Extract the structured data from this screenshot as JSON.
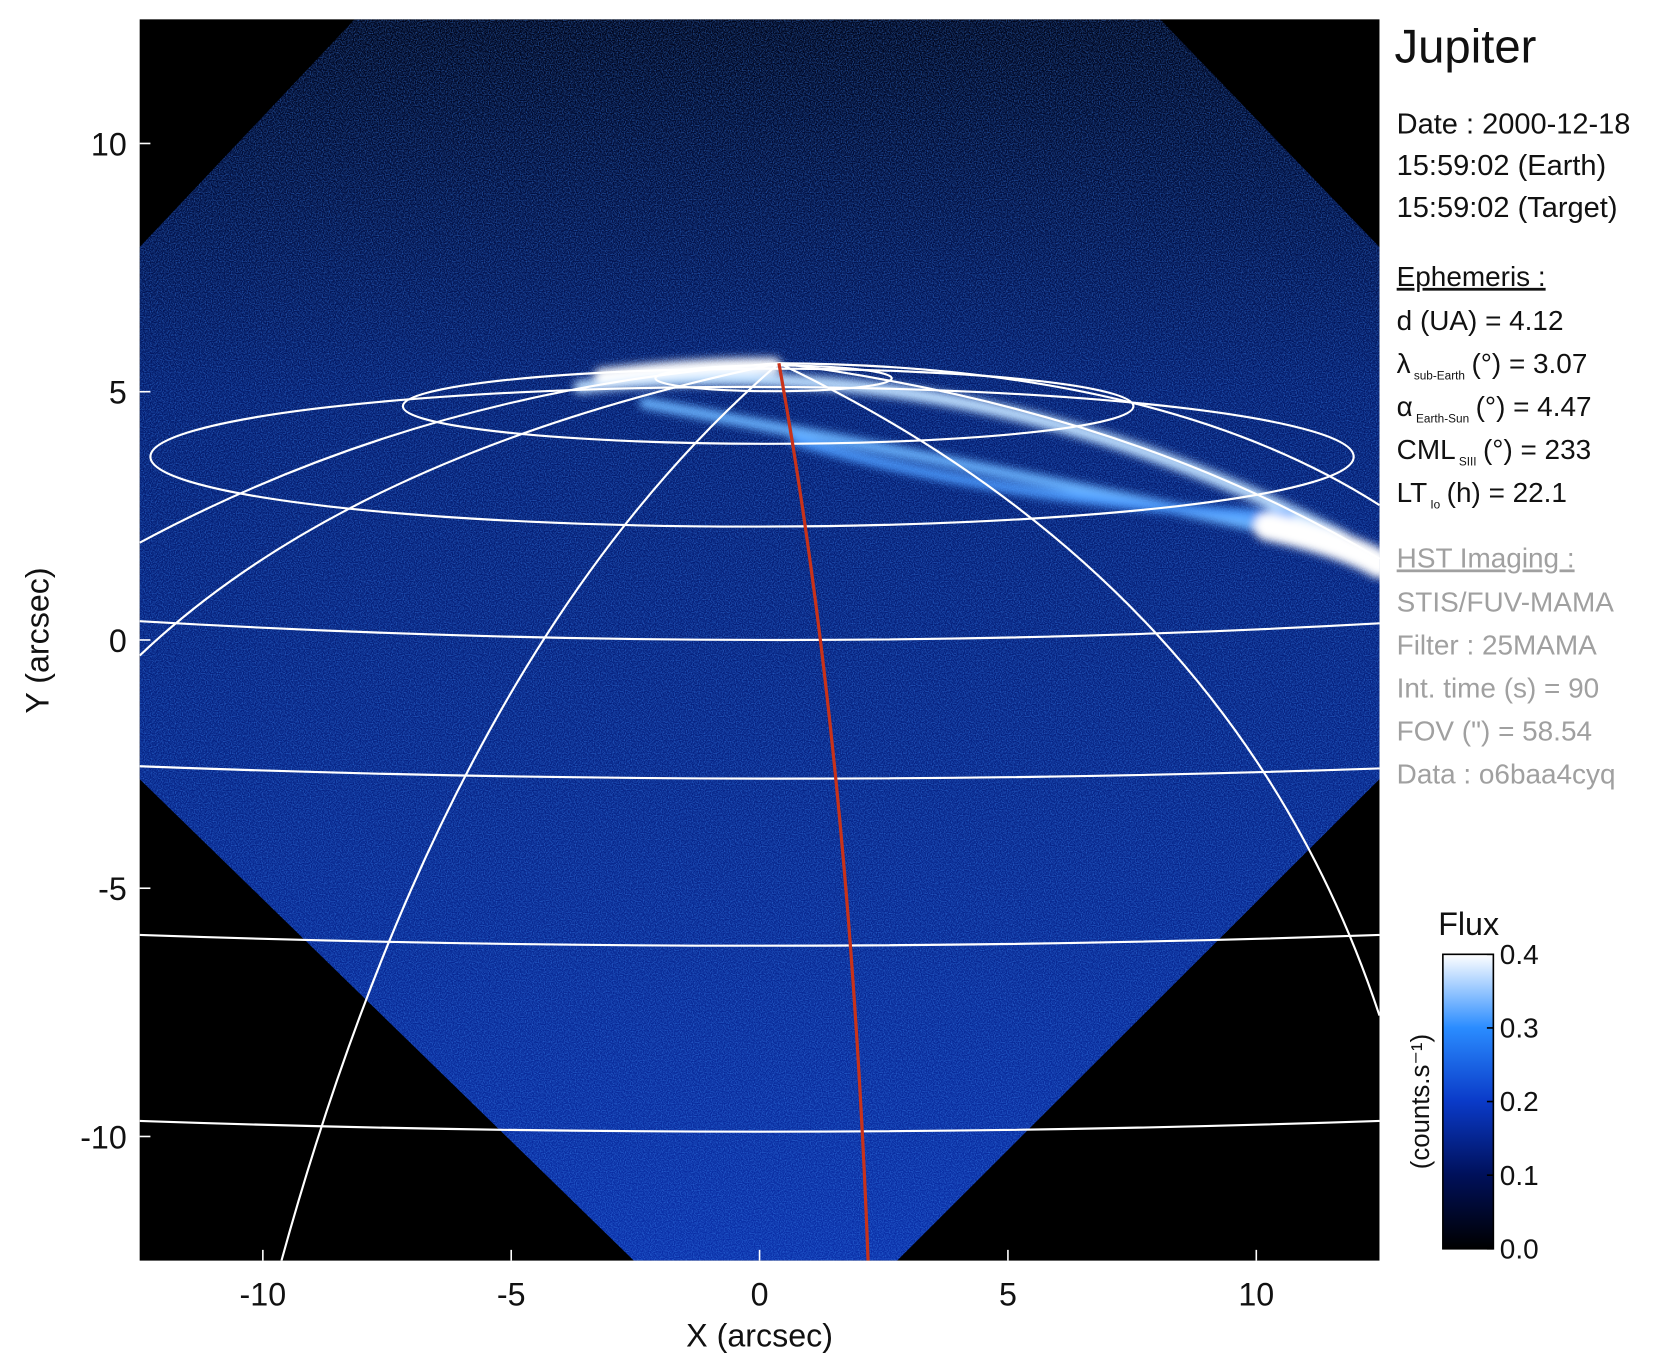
{
  "chart_data": {
    "type": "image",
    "title": "Jupiter",
    "xlabel": "X (arcsec)",
    "ylabel": "Y (arcsec)",
    "xlim": [
      -12.48,
      12.48
    ],
    "ylim": [
      -12.5,
      12.5
    ],
    "xticks": [
      -10,
      -5,
      0,
      5,
      10
    ],
    "yticks": [
      -10,
      -5,
      0,
      5,
      10
    ],
    "grid": false,
    "colorbar": {
      "label": "Flux",
      "unit_label": "(counts.s⁻¹)",
      "clim": [
        0,
        0.4
      ],
      "ticks": [
        {
          "value": 0,
          "label": "0.0"
        },
        0.1,
        0.2,
        0.3,
        0.4
      ],
      "colors": [
        "#000000",
        "#00105a",
        "#0a3ac8",
        "#2a8cff",
        "#ffffff"
      ]
    },
    "info": {
      "date": "Date : 2000-12-18",
      "time_earth": "15:59:02 (Earth)",
      "time_target": "15:59:02 (Target)",
      "ephemeris": {
        "heading": "Ephemeris :",
        "lines": [
          {
            "text": "d (UA)    = 4.12"
          },
          {
            "text": "λ",
            "sub": "sub-Earth",
            "rest": "(°) = 3.07"
          },
          {
            "text": "α",
            "sub": "Earth-Sun",
            "rest": "(°) = 4.47"
          },
          {
            "text": "CML",
            "sub": "SIII",
            "rest": "(°) = 233"
          },
          {
            "text": "LT",
            "sub": "Io",
            "rest": "(h) = 22.1"
          }
        ]
      },
      "hst": {
        "heading": "HST Imaging :",
        "lines": [
          "STIS/FUV-MAMA",
          "Filter : 25MAMA",
          "Int. time (s) = 90",
          "FOV (\") = 58.54",
          "Data : o6baa4cyq"
        ]
      }
    }
  }
}
